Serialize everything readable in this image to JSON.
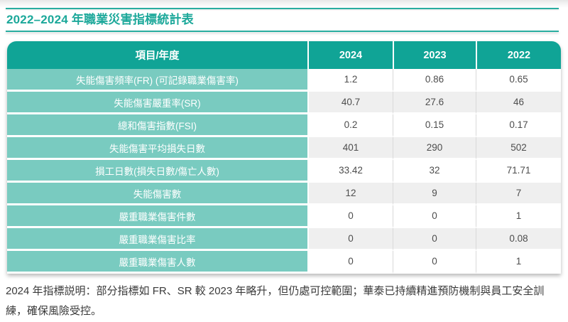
{
  "page": {
    "title": "2022–2024 年職業災害指標統計表",
    "note": "2024 年指標説明：部分指標如 FR、SR 較 2023 年略升，但仍處可控範圍；華泰已持續精進預防機制與員工安全訓練，確保風險受控。"
  },
  "table": {
    "headers": [
      "項目/年度",
      "2024",
      "2023",
      "2022"
    ],
    "rows": [
      {
        "label": "失能傷害頻率(FR) (可記錄職業傷害率)",
        "values": [
          "1.2",
          "0.86",
          "0.65"
        ]
      },
      {
        "label": "失能傷害嚴重率(SR)",
        "values": [
          "40.7",
          "27.6",
          "46"
        ]
      },
      {
        "label": "總和傷害指數(FSI)",
        "values": [
          "0.2",
          "0.15",
          "0.17"
        ]
      },
      {
        "label": "失能傷害平均損失日數",
        "values": [
          "401",
          "290",
          "502"
        ]
      },
      {
        "label": "損工日數(損失日數/傷亡人數)",
        "values": [
          "33.42",
          "32",
          "71.71"
        ]
      },
      {
        "label": "失能傷害數",
        "values": [
          "12",
          "9",
          "7"
        ]
      },
      {
        "label": "嚴重職業傷害件數",
        "values": [
          "0",
          "0",
          "1"
        ]
      },
      {
        "label": "嚴重職業傷害比率",
        "values": [
          "0",
          "0",
          "0.08"
        ]
      },
      {
        "label": "嚴重職業傷害人數",
        "values": [
          "0",
          "0",
          "1"
        ]
      }
    ]
  },
  "colors": {
    "header_teal": "#10a496",
    "label_teal": "#79cbc0",
    "title_teal": "#1ca89a",
    "rule_teal": "#29ada0",
    "row_alt_gray": "#efefef",
    "value_text": "#4d4d4d"
  },
  "chart_data": {
    "type": "table",
    "title": "2022–2024 年職業災害指標統計表",
    "columns": [
      "項目/年度",
      "2024",
      "2023",
      "2022"
    ],
    "rows": [
      [
        "失能傷害頻率(FR) (可記錄職業傷害率)",
        1.2,
        0.86,
        0.65
      ],
      [
        "失能傷害嚴重率(SR)",
        40.7,
        27.6,
        46
      ],
      [
        "總和傷害指數(FSI)",
        0.2,
        0.15,
        0.17
      ],
      [
        "失能傷害平均損失日數",
        401,
        290,
        502
      ],
      [
        "損工日數(損失日數/傷亡人數)",
        33.42,
        32,
        71.71
      ],
      [
        "失能傷害數",
        12,
        9,
        7
      ],
      [
        "嚴重職業傷害件數",
        0,
        0,
        1
      ],
      [
        "嚴重職業傷害比率",
        0,
        0,
        0.08
      ],
      [
        "嚴重職業傷害人數",
        0,
        0,
        1
      ]
    ]
  }
}
